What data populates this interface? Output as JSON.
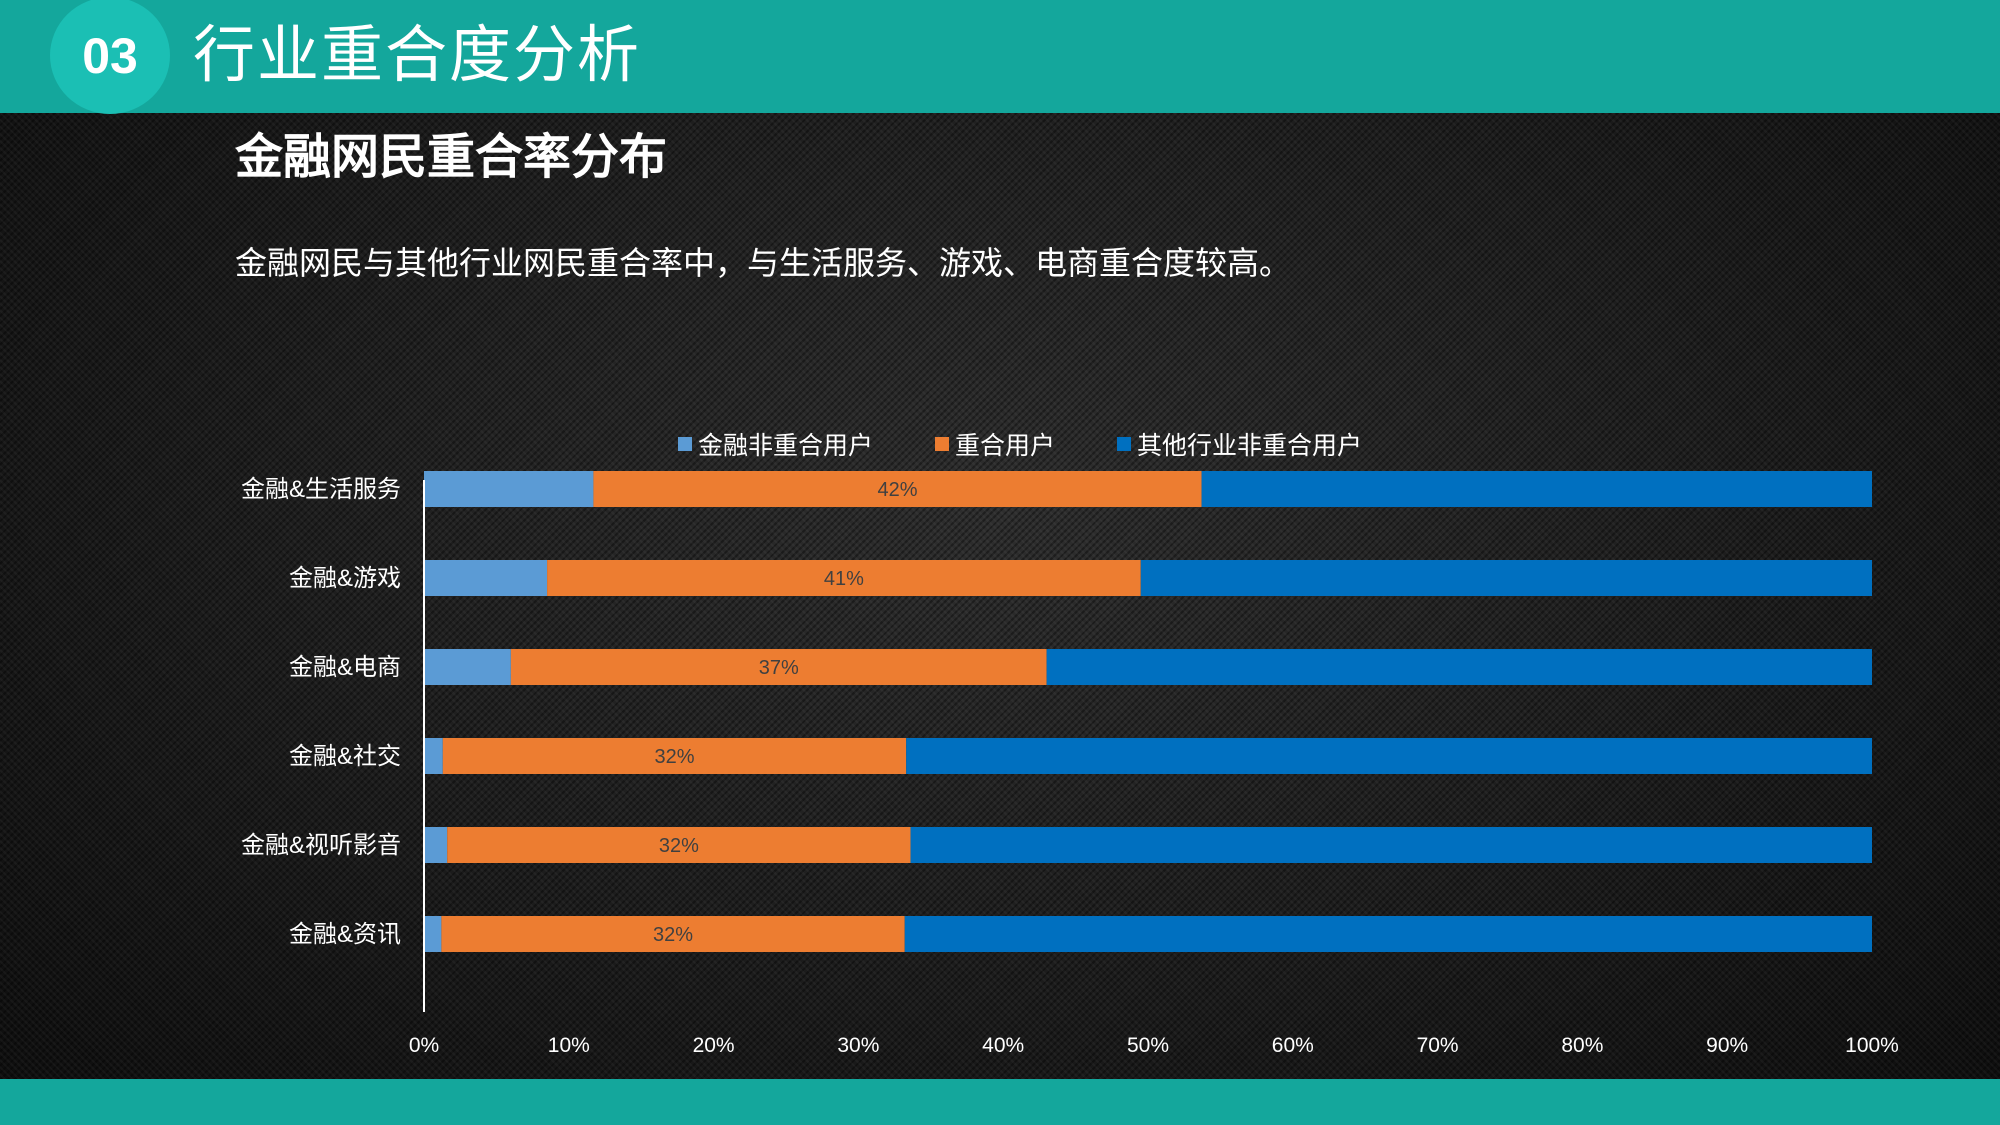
{
  "header": {
    "section_number": "03",
    "title": "行业重合度分析"
  },
  "slide": {
    "title": "金融网民重合率分布",
    "description": "金融网民与其他行业网民重合率中，与生活服务、游戏、电商重合度较高。"
  },
  "chart_data": {
    "type": "bar",
    "orientation": "horizontal",
    "stacked": "percent",
    "categories": [
      "金融&生活服务",
      "金融&游戏",
      "金融&电商",
      "金融&社交",
      "金融&视听影音",
      "金融&资讯"
    ],
    "series": [
      {
        "name": "金融非重合用户",
        "color": "#5b9bd5",
        "values": [
          11.7,
          8.5,
          6.0,
          1.3,
          1.6,
          1.2
        ]
      },
      {
        "name": "重合用户",
        "color": "#ed7d31",
        "values": [
          42,
          41,
          37,
          32,
          32,
          32
        ],
        "labels": [
          "42%",
          "41%",
          "37%",
          "32%",
          "32%",
          "32%"
        ]
      },
      {
        "name": "其他行业非重合用户",
        "color": "#0070c0",
        "values": [
          46.3,
          50.5,
          57.0,
          66.7,
          66.4,
          66.8
        ]
      }
    ],
    "xlim": [
      0,
      100
    ],
    "xticks": [
      "0%",
      "10%",
      "20%",
      "30%",
      "40%",
      "50%",
      "60%",
      "70%",
      "80%",
      "90%",
      "100%"
    ],
    "legend_position": "top"
  }
}
